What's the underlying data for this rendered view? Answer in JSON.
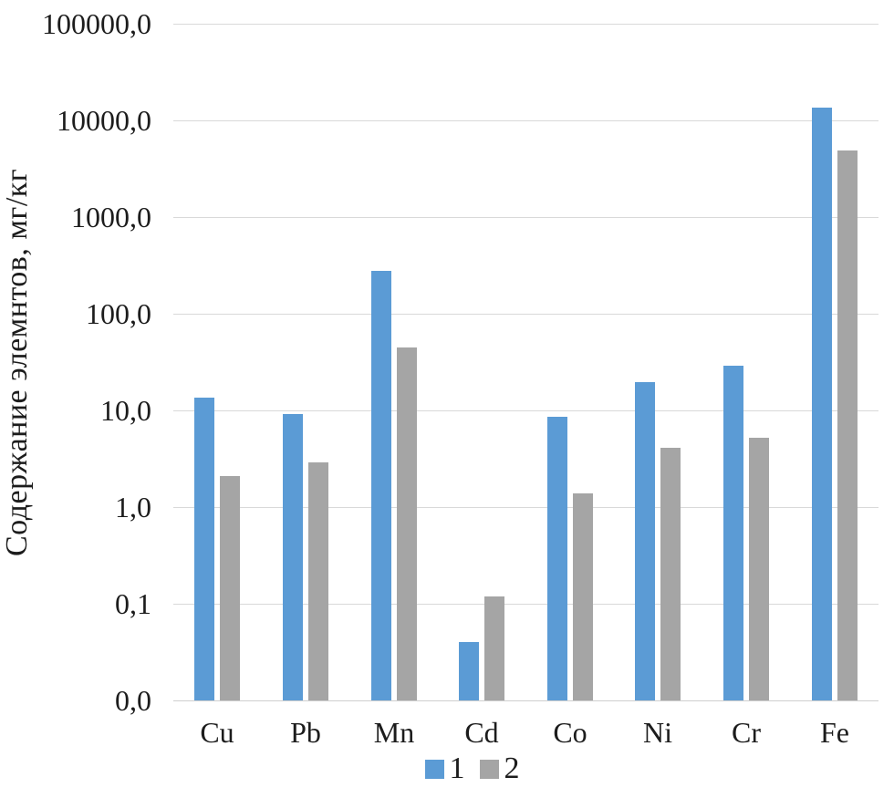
{
  "chart_data": {
    "type": "bar",
    "title": "",
    "xlabel": "",
    "ylabel": "Содержание элемнтов, мг/кг",
    "scale": "log",
    "grid": true,
    "legend_position": "bottom",
    "categories": [
      "Cu",
      "Pb",
      "Mn",
      "Cd",
      "Co",
      "Ni",
      "Cr",
      "Fe"
    ],
    "series": [
      {
        "name": "1",
        "color": "#5B9BD5",
        "values": [
          13.5,
          9.1,
          280,
          0.04,
          8.5,
          19.5,
          29,
          13600
        ]
      },
      {
        "name": "2",
        "color": "#A5A5A5",
        "values": [
          2.1,
          2.9,
          45,
          0.12,
          1.4,
          4.1,
          5.2,
          4850
        ]
      }
    ],
    "y_axis": {
      "min": 0.01,
      "max": 100000,
      "tick_values": [
        100000,
        10000,
        1000,
        100,
        10,
        1,
        0.1,
        0.01
      ],
      "tick_labels": [
        "100000,0",
        "10000,0",
        "1000,0",
        "100,0",
        "10,0",
        "1,0",
        "0,1",
        "0,0"
      ]
    },
    "legend": {
      "entries": [
        {
          "label": "1",
          "color": "#5B9BD5"
        },
        {
          "label": "2",
          "color": "#A5A5A5"
        }
      ]
    },
    "colors": {
      "gridline": "#d9d9d9",
      "axis_line": "#cfcfcf",
      "text": "#1c1c1c"
    }
  }
}
